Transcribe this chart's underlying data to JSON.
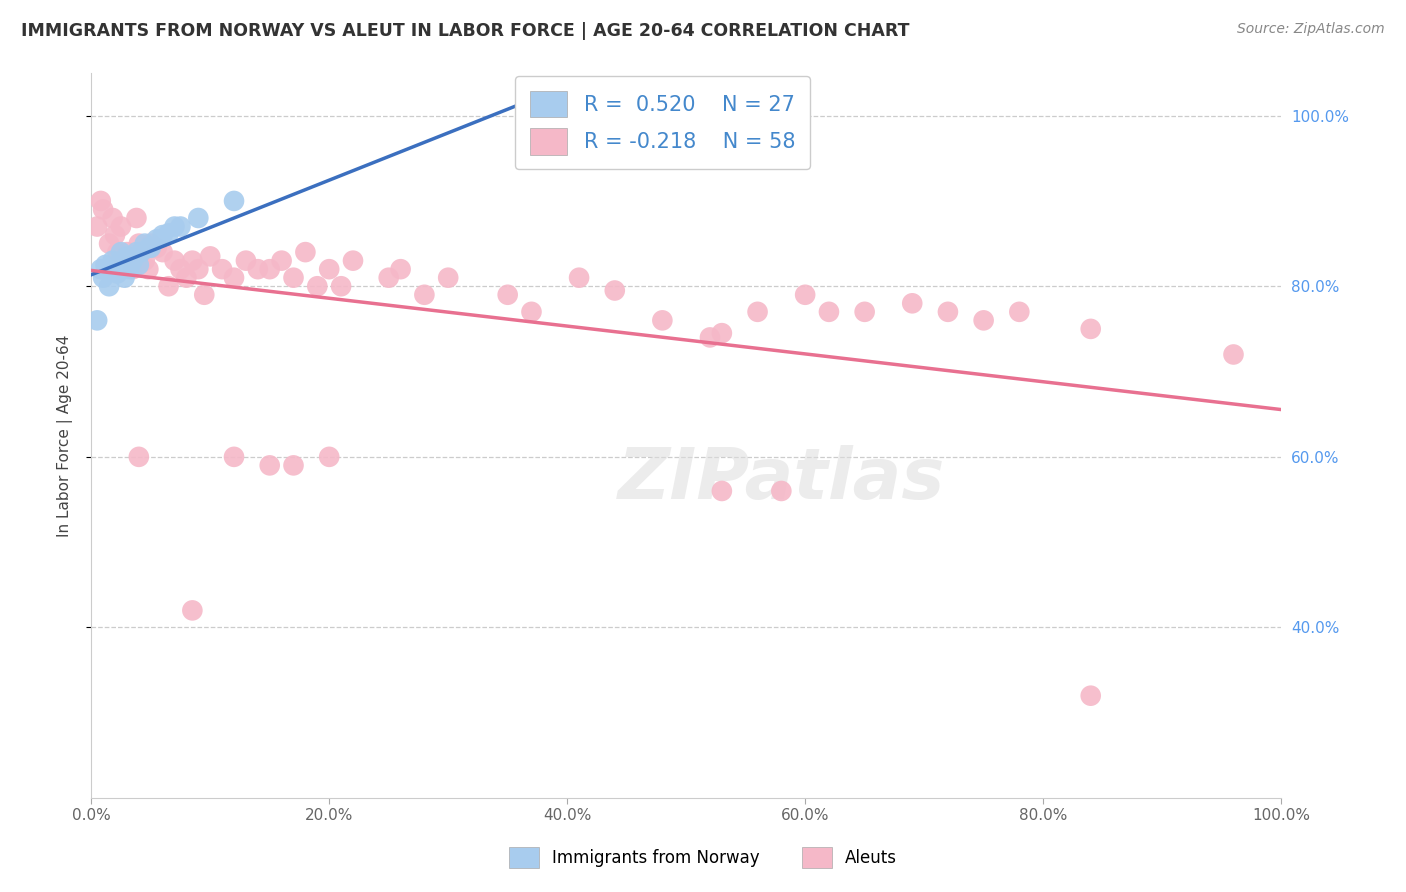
{
  "title": "IMMIGRANTS FROM NORWAY VS ALEUT IN LABOR FORCE | AGE 20-64 CORRELATION CHART",
  "source": "Source: ZipAtlas.com",
  "ylabel": "In Labor Force | Age 20-64",
  "xlim": [
    0.0,
    1.0
  ],
  "ylim": [
    0.2,
    1.05
  ],
  "blue_R": 0.52,
  "blue_N": 27,
  "pink_R": -0.218,
  "pink_N": 58,
  "blue_color": "#A8CCEE",
  "pink_color": "#F5B8C8",
  "blue_line_color": "#3B6FBF",
  "pink_line_color": "#E87090",
  "legend_label_blue": "Immigrants from Norway",
  "legend_label_pink": "Aleuts",
  "blue_x": [
    0.005,
    0.008,
    0.01,
    0.012,
    0.015,
    0.018,
    0.02,
    0.022,
    0.025,
    0.028,
    0.03,
    0.032,
    0.035,
    0.038,
    0.04,
    0.042,
    0.045,
    0.048,
    0.05,
    0.055,
    0.06,
    0.065,
    0.07,
    0.075,
    0.09,
    0.12,
    0.375
  ],
  "blue_y": [
    0.76,
    0.82,
    0.81,
    0.825,
    0.8,
    0.83,
    0.82,
    0.815,
    0.84,
    0.81,
    0.835,
    0.82,
    0.83,
    0.84,
    0.825,
    0.84,
    0.85,
    0.845,
    0.845,
    0.855,
    0.86,
    0.862,
    0.87,
    0.87,
    0.88,
    0.9,
    1.0
  ],
  "pink_x": [
    0.005,
    0.008,
    0.01,
    0.015,
    0.018,
    0.02,
    0.022,
    0.025,
    0.03,
    0.035,
    0.038,
    0.04,
    0.045,
    0.048,
    0.05,
    0.055,
    0.06,
    0.065,
    0.07,
    0.075,
    0.08,
    0.085,
    0.09,
    0.095,
    0.1,
    0.11,
    0.12,
    0.13,
    0.14,
    0.15,
    0.16,
    0.17,
    0.18,
    0.19,
    0.2,
    0.21,
    0.22,
    0.25,
    0.26,
    0.28,
    0.3,
    0.35,
    0.37,
    0.41,
    0.44,
    0.48,
    0.52,
    0.53,
    0.56,
    0.6,
    0.62,
    0.65,
    0.69,
    0.72,
    0.75,
    0.78,
    0.84,
    0.96
  ],
  "pink_y": [
    0.87,
    0.9,
    0.89,
    0.85,
    0.88,
    0.86,
    0.84,
    0.87,
    0.84,
    0.82,
    0.88,
    0.85,
    0.83,
    0.82,
    0.85,
    0.845,
    0.84,
    0.8,
    0.83,
    0.82,
    0.81,
    0.83,
    0.82,
    0.79,
    0.835,
    0.82,
    0.81,
    0.83,
    0.82,
    0.82,
    0.83,
    0.81,
    0.84,
    0.8,
    0.82,
    0.8,
    0.83,
    0.81,
    0.82,
    0.79,
    0.81,
    0.79,
    0.77,
    0.81,
    0.795,
    0.76,
    0.74,
    0.745,
    0.77,
    0.79,
    0.77,
    0.77,
    0.78,
    0.77,
    0.76,
    0.77,
    0.75,
    0.72
  ],
  "pink_low_x": [
    0.04,
    0.085,
    0.12,
    0.15,
    0.17,
    0.2,
    0.53,
    0.58,
    0.84
  ],
  "pink_low_y": [
    0.6,
    0.42,
    0.6,
    0.59,
    0.59,
    0.6,
    0.56,
    0.56,
    0.32
  ],
  "watermark_text": "ZIPatlas",
  "right_ytick_vals": [
    1.0,
    0.8,
    0.6,
    0.4
  ],
  "right_ytick_labels": [
    "100.0%",
    "80.0%",
    "60.0%",
    "40.0%"
  ],
  "xtick_vals": [
    0.0,
    0.2,
    0.4,
    0.6,
    0.8,
    1.0
  ],
  "xtick_labels": [
    "0.0%",
    "20.0%",
    "40.0%",
    "60.0%",
    "80.0%",
    "100.0%"
  ],
  "grid_color": "#CCCCCC",
  "grid_style": "--"
}
